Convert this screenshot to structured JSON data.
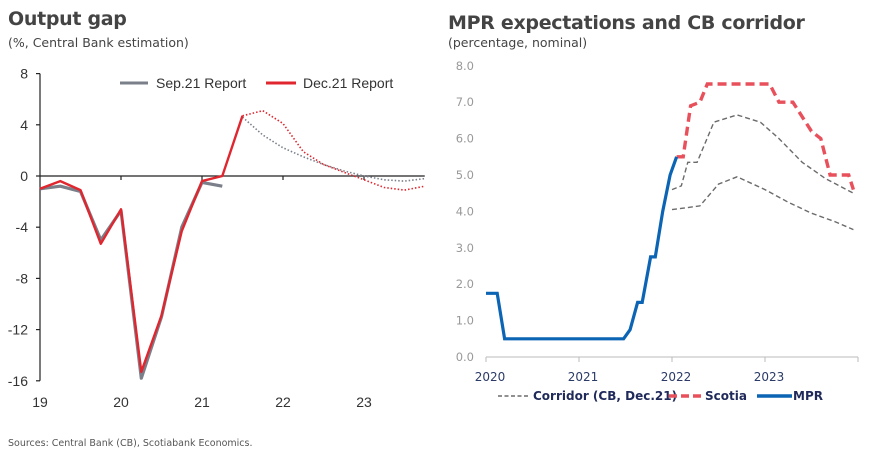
{
  "source_note": "Sources: Central Bank (CB), Scotiabank Economics.",
  "colors": {
    "sep_report": "#7a7f8a",
    "dec_report": "#e0262e",
    "corridor": "#6b6b6b",
    "scotia": "#e8505b",
    "mpr": "#0b64b4"
  },
  "chart_data": [
    {
      "type": "line",
      "title": "Output gap",
      "subtitle": "(%, Central Bank estimation)",
      "xlabel": "",
      "ylabel": "",
      "ylim": [
        -16,
        8
      ],
      "yticks": [
        8,
        4,
        0,
        -4,
        -8,
        -12,
        -16
      ],
      "ytick_labels": [
        "8",
        "4",
        "0",
        "-4",
        "-8",
        "-12",
        "-16"
      ],
      "xlim": [
        2019.0,
        2023.75
      ],
      "xticks": [
        2019,
        2020,
        2021,
        2022,
        2023
      ],
      "xtick_labels": [
        "19",
        "20",
        "21",
        "22",
        "23"
      ],
      "grid": false,
      "legend": {
        "position": "top",
        "entries": [
          "Sep.21 Report",
          "Dec.21 Report"
        ]
      },
      "series": [
        {
          "name": "Sep.21 Report",
          "x": [
            2019.0,
            2019.25,
            2019.5,
            2019.75,
            2020.0,
            2020.25,
            2020.5,
            2020.75,
            2021.0,
            2021.25
          ],
          "values": [
            -1.0,
            -0.8,
            -1.2,
            -5.0,
            -2.7,
            -15.8,
            -11.0,
            -4.0,
            -0.5,
            -0.8
          ]
        },
        {
          "name": "Sep.21 Report (forecast)",
          "style": "dotted",
          "x": [
            2021.5,
            2021.75,
            2022.0,
            2022.25,
            2022.5,
            2022.75,
            2023.0,
            2023.25,
            2023.5,
            2023.75
          ],
          "values": [
            4.6,
            3.2,
            2.2,
            1.5,
            0.9,
            0.4,
            0.0,
            -0.3,
            -0.4,
            -0.2
          ]
        },
        {
          "name": "Dec.21 Report",
          "x": [
            2019.0,
            2019.25,
            2019.5,
            2019.75,
            2020.0,
            2020.25,
            2020.5,
            2020.75,
            2021.0,
            2021.25,
            2021.5
          ],
          "values": [
            -1.0,
            -0.4,
            -1.1,
            -5.3,
            -2.6,
            -15.3,
            -10.9,
            -4.3,
            -0.4,
            0.0,
            4.7
          ]
        },
        {
          "name": "Dec.21 Report (forecast)",
          "style": "dotted",
          "x": [
            2021.5,
            2021.75,
            2022.0,
            2022.25,
            2022.5,
            2022.75,
            2023.0,
            2023.25,
            2023.5,
            2023.75
          ],
          "values": [
            4.7,
            5.1,
            4.1,
            1.9,
            0.9,
            0.3,
            -0.3,
            -0.9,
            -1.1,
            -0.8
          ]
        }
      ]
    },
    {
      "type": "line",
      "title": "MPR expectations and CB corridor",
      "subtitle": "(percentage, nominal)",
      "xlabel": "",
      "ylabel": "",
      "ylim": [
        0.0,
        8.0
      ],
      "yticks": [
        0,
        1,
        2,
        3,
        4,
        5,
        6,
        7,
        8
      ],
      "ytick_labels": [
        "0.0",
        "1.0",
        "2.0",
        "3.0",
        "4.0",
        "5.0",
        "6.0",
        "7.0",
        "8.0"
      ],
      "xlim": [
        2020.0,
        2024.0
      ],
      "xticks": [
        2020,
        2021,
        2022,
        2023
      ],
      "xtick_labels": [
        "2020",
        "2021",
        "2022",
        "2023"
      ],
      "grid": false,
      "legend": {
        "position": "bottom",
        "entries": [
          "Corridor (CB, Dec.21)",
          "Scotia",
          "MPR"
        ]
      },
      "series": [
        {
          "name": "MPR",
          "x": [
            2020.0,
            2020.12,
            2020.2,
            2020.4,
            2020.8,
            2021.2,
            2021.4,
            2021.48,
            2021.55,
            2021.63,
            2021.68,
            2021.77,
            2021.82,
            2021.9,
            2021.98,
            2022.05
          ],
          "values": [
            1.75,
            1.75,
            0.5,
            0.5,
            0.5,
            0.5,
            0.5,
            0.5,
            0.75,
            1.5,
            1.5,
            2.75,
            2.75,
            4.0,
            5.0,
            5.5
          ]
        },
        {
          "name": "Scotia",
          "x": [
            2022.05,
            2022.12,
            2022.2,
            2022.3,
            2022.38,
            2022.5,
            2022.75,
            2022.95,
            2023.05,
            2023.15,
            2023.3,
            2023.5,
            2023.6,
            2023.7,
            2023.8,
            2023.9,
            2023.95
          ],
          "values": [
            5.5,
            5.5,
            6.9,
            7.0,
            7.5,
            7.5,
            7.5,
            7.5,
            7.5,
            7.0,
            7.0,
            6.2,
            6.0,
            5.0,
            5.0,
            5.0,
            4.6
          ]
        },
        {
          "name": "Corridor upper (CB, Dec.21)",
          "x": [
            2022.0,
            2022.1,
            2022.17,
            2022.27,
            2022.45,
            2022.7,
            2022.95,
            2023.15,
            2023.4,
            2023.65,
            2023.95
          ],
          "values": [
            4.6,
            4.7,
            5.35,
            5.35,
            6.45,
            6.65,
            6.45,
            6.0,
            5.35,
            4.9,
            4.5
          ]
        },
        {
          "name": "Corridor lower (CB, Dec.21)",
          "x": [
            2022.0,
            2022.15,
            2022.3,
            2022.5,
            2022.7,
            2023.0,
            2023.25,
            2023.5,
            2023.75,
            2023.95
          ],
          "values": [
            4.05,
            4.1,
            4.15,
            4.75,
            4.95,
            4.6,
            4.25,
            3.95,
            3.72,
            3.5
          ]
        }
      ]
    }
  ]
}
